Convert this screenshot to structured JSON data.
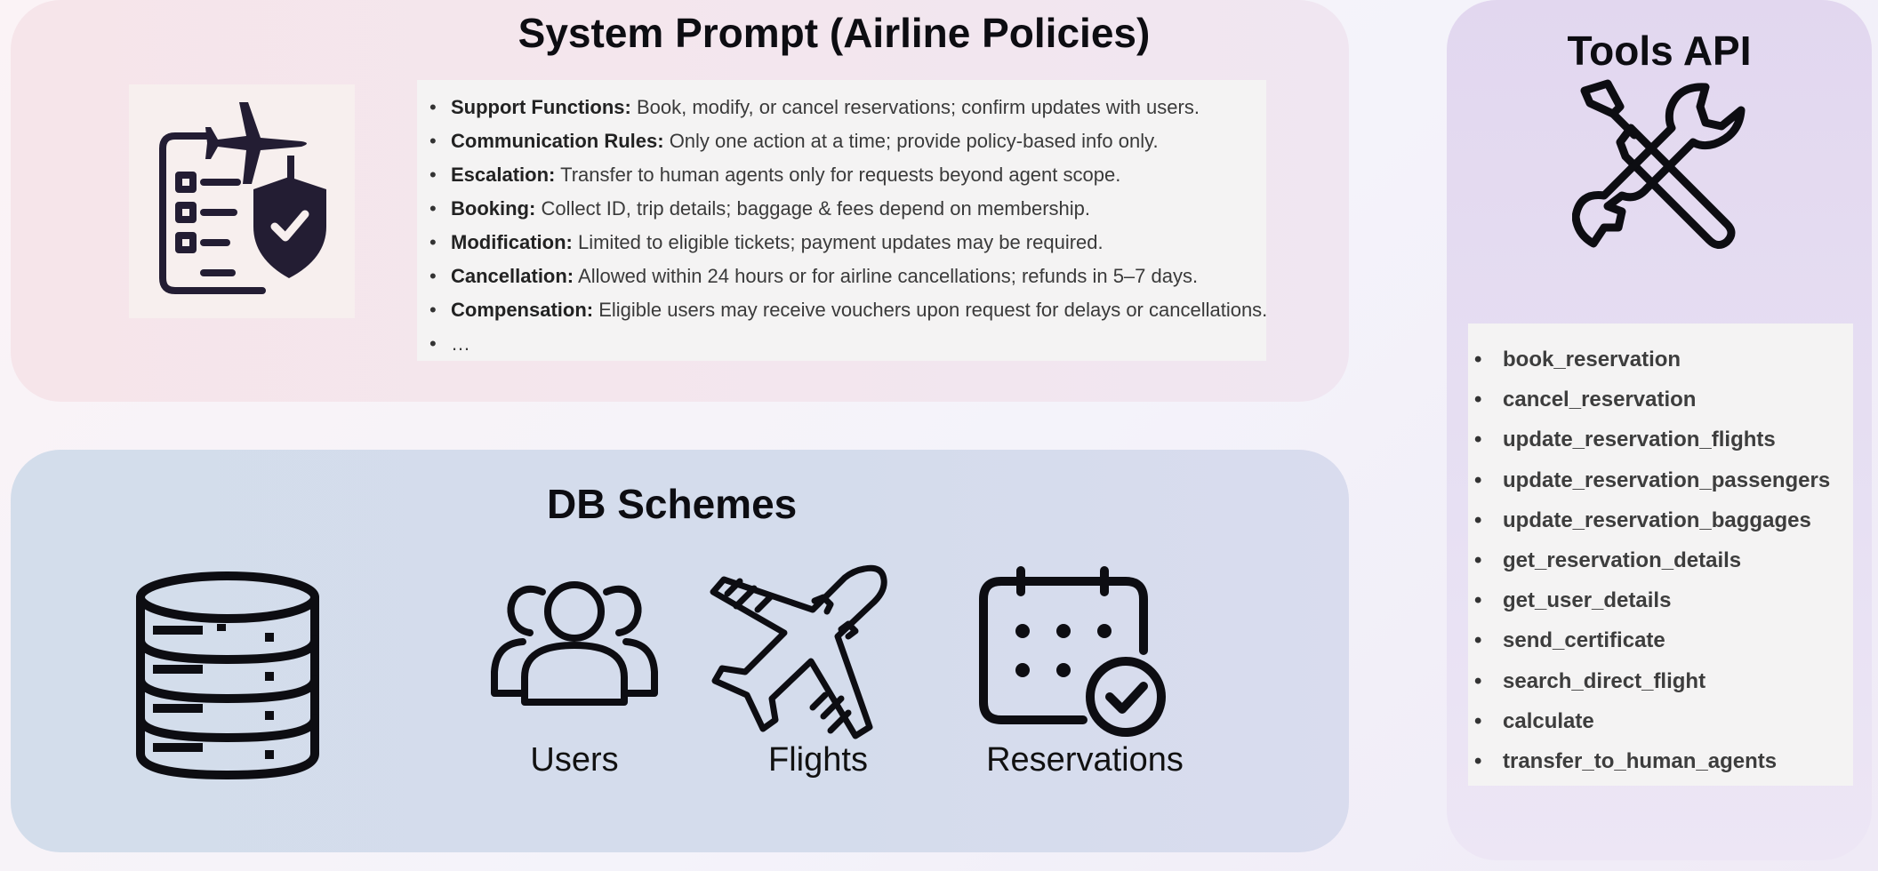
{
  "system_prompt": {
    "title": "System Prompt (Airline Policies)",
    "icon": "policy-checklist-plane-shield-icon",
    "policies": [
      {
        "label": "Support Functions:",
        "text": " Book, modify, or cancel reservations; confirm updates with users."
      },
      {
        "label": "Communication Rules:",
        "text": " Only one action at a time; provide policy-based info only."
      },
      {
        "label": "Escalation:",
        "text": " Transfer to human agents only for requests beyond agent scope."
      },
      {
        "label": "Booking:",
        "text": " Collect ID, trip details; baggage & fees depend on membership."
      },
      {
        "label": "Modification:",
        "text": " Limited to eligible tickets; payment updates may be required."
      },
      {
        "label": "Cancellation:",
        "text": " Allowed within 24 hours or for airline cancellations; refunds in 5–7 days."
      },
      {
        "label": "Compensation:",
        "text": " Eligible users may receive vouchers upon request for delays or cancellations."
      },
      {
        "label": "",
        "text": "…"
      }
    ]
  },
  "db_schemes": {
    "title": "DB Schemes",
    "database_icon": "database-icon",
    "entities": [
      {
        "label": "Users",
        "icon": "users-icon"
      },
      {
        "label": "Flights",
        "icon": "airplane-icon"
      },
      {
        "label": "Reservations",
        "icon": "calendar-check-icon"
      }
    ]
  },
  "tools_api": {
    "title": "Tools API",
    "icon": "wrench-screwdriver-icon",
    "tools": [
      "book_reservation",
      "cancel_reservation",
      "update_reservation_flights",
      "update_reservation_passengers",
      "update_reservation_baggages",
      "get_reservation_details",
      "get_user_details",
      "send_certificate",
      "search_direct_flight",
      "calculate",
      "transfer_to_human_agents"
    ]
  }
}
